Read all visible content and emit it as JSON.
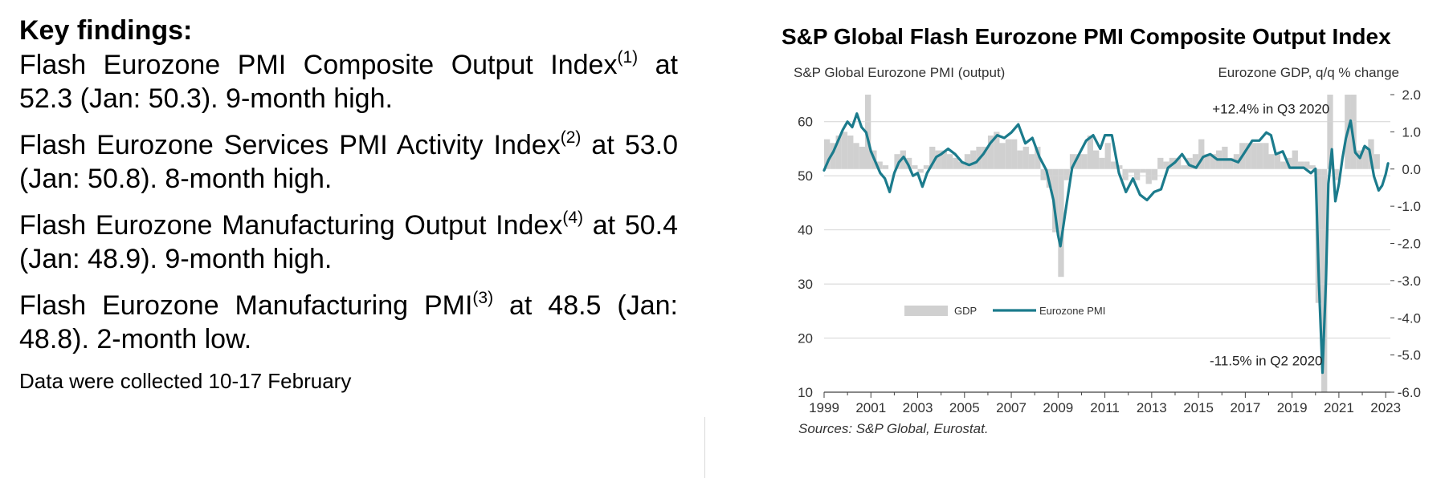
{
  "key_findings": {
    "title": "Key findings:",
    "items": [
      {
        "text": "Flash Eurozone PMI Composite Output Index",
        "sup": "(1)",
        "rest": " at 52.3 (Jan: 50.3). 9-month high."
      },
      {
        "text": "Flash Eurozone Services PMI Activity Index",
        "sup": "(2)",
        "rest": " at 53.0 (Jan: 50.8). 8-month high."
      },
      {
        "text": "Flash Eurozone Manufacturing Output Index",
        "sup": "(4)",
        "rest": " at 50.4 (Jan: 48.9). 9-month high."
      },
      {
        "text": "Flash Eurozone Manufacturing PMI",
        "sup": "(3)",
        "rest": " at 48.5 (Jan: 48.8). 2-month low."
      }
    ],
    "note": "Data were collected 10-17 February"
  },
  "chart_data": {
    "type": "line",
    "title": "S&P Global Flash Eurozone PMI Composite Output Index",
    "ylabel_left": "S&P Global Eurozone PMI (output)",
    "ylabel_right": "Eurozone GDP, q/q % change",
    "source": "Sources: S&P Global, Eurostat.",
    "xlim": [
      1999,
      2023.2
    ],
    "ylim_left": [
      10,
      65
    ],
    "ylim_right": [
      -6.0,
      2.0
    ],
    "x_ticks": [
      "1999",
      "2001",
      "2003",
      "2005",
      "2007",
      "2009",
      "2011",
      "2013",
      "2015",
      "2017",
      "2019",
      "2021",
      "2023"
    ],
    "y_ticks_left": [
      "10",
      "20",
      "30",
      "40",
      "50",
      "60"
    ],
    "y_ticks_right": [
      "2.0",
      "1.0",
      "0.0",
      "-1.0",
      "-2.0",
      "-3.0",
      "-4.0",
      "-5.0",
      "-6.0"
    ],
    "legend": {
      "gdp": "GDP",
      "pmi": "Eurozone PMI"
    },
    "colors": {
      "pmi": "#1b7b8c",
      "gdp": "#d0d0d0",
      "grid": "#d4d4d4",
      "axis": "#404040"
    },
    "annotations": [
      {
        "text": "+12.4% in Q3 2020",
        "x": 2020.6,
        "y": 61.5
      },
      {
        "text": "-11.5% in Q2 2020",
        "x": 2020.3,
        "y": 15.0
      }
    ],
    "gdp_series": {
      "name": "GDP",
      "x": [
        1999.0,
        1999.25,
        1999.5,
        1999.75,
        2000.0,
        2000.25,
        2000.5,
        2000.75,
        2001.0,
        2001.25,
        2001.5,
        2001.75,
        2002.0,
        2002.25,
        2002.5,
        2002.75,
        2003.0,
        2003.25,
        2003.5,
        2003.75,
        2004.0,
        2004.25,
        2004.5,
        2004.75,
        2005.0,
        2005.25,
        2005.5,
        2005.75,
        2006.0,
        2006.25,
        2006.5,
        2006.75,
        2007.0,
        2007.25,
        2007.5,
        2007.75,
        2008.0,
        2008.25,
        2008.5,
        2008.75,
        2009.0,
        2009.25,
        2009.5,
        2009.75,
        2010.0,
        2010.25,
        2010.5,
        2010.75,
        2011.0,
        2011.25,
        2011.5,
        2011.75,
        2012.0,
        2012.25,
        2012.5,
        2012.75,
        2013.0,
        2013.25,
        2013.5,
        2013.75,
        2014.0,
        2014.25,
        2014.5,
        2014.75,
        2015.0,
        2015.25,
        2015.5,
        2015.75,
        2016.0,
        2016.25,
        2016.5,
        2016.75,
        2017.0,
        2017.25,
        2017.5,
        2017.75,
        2018.0,
        2018.25,
        2018.5,
        2018.75,
        2019.0,
        2019.25,
        2019.5,
        2019.75,
        2020.0,
        2020.25,
        2020.5,
        2020.75,
        2021.0,
        2021.25,
        2021.5,
        2021.75,
        2022.0,
        2022.25,
        2022.5,
        2022.75
      ],
      "values": [
        0.8,
        0.7,
        0.9,
        1.0,
        0.9,
        0.7,
        0.6,
        2.0,
        0.5,
        0.2,
        0.1,
        0.0,
        0.4,
        0.5,
        0.3,
        0.1,
        -0.1,
        0.1,
        0.6,
        0.5,
        0.5,
        0.4,
        0.3,
        0.2,
        0.4,
        0.5,
        0.6,
        0.6,
        0.9,
        1.0,
        0.7,
        0.8,
        0.8,
        0.5,
        0.6,
        0.4,
        0.6,
        -0.3,
        -0.5,
        -1.7,
        -2.9,
        -0.3,
        0.4,
        0.4,
        0.4,
        0.9,
        0.5,
        0.3,
        0.7,
        0.2,
        0.1,
        -0.3,
        -0.1,
        -0.3,
        -0.1,
        -0.4,
        -0.3,
        0.3,
        0.2,
        0.3,
        0.3,
        0.1,
        0.3,
        0.4,
        0.8,
        0.4,
        0.4,
        0.5,
        0.6,
        0.3,
        0.4,
        0.7,
        0.7,
        0.7,
        0.7,
        0.7,
        0.4,
        0.4,
        0.2,
        0.3,
        0.5,
        0.2,
        0.2,
        0.1,
        -3.6,
        -11.5,
        12.4,
        -0.3,
        0.0,
        2.2,
        2.1,
        0.5,
        0.6,
        0.8,
        0.4,
        0.0
      ]
    },
    "pmi_series": {
      "name": "Eurozone PMI",
      "x": [
        1999.0,
        1999.2,
        1999.4,
        1999.6,
        1999.8,
        2000.0,
        2000.2,
        2000.4,
        2000.6,
        2000.8,
        2001.0,
        2001.2,
        2001.4,
        2001.6,
        2001.8,
        2002.0,
        2002.2,
        2002.4,
        2002.6,
        2002.8,
        2003.0,
        2003.2,
        2003.4,
        2003.6,
        2003.8,
        2004.0,
        2004.3,
        2004.6,
        2004.9,
        2005.2,
        2005.5,
        2005.8,
        2006.1,
        2006.4,
        2006.7,
        2007.0,
        2007.3,
        2007.6,
        2007.9,
        2008.2,
        2008.5,
        2008.8,
        2009.0,
        2009.1,
        2009.3,
        2009.6,
        2009.9,
        2010.2,
        2010.5,
        2010.8,
        2011.0,
        2011.3,
        2011.6,
        2011.9,
        2012.2,
        2012.5,
        2012.8,
        2013.1,
        2013.4,
        2013.7,
        2014.0,
        2014.3,
        2014.6,
        2014.9,
        2015.2,
        2015.5,
        2015.8,
        2016.1,
        2016.4,
        2016.7,
        2017.0,
        2017.3,
        2017.6,
        2017.9,
        2018.1,
        2018.3,
        2018.6,
        2018.9,
        2019.2,
        2019.5,
        2019.8,
        2020.0,
        2020.15,
        2020.3,
        2020.45,
        2020.55,
        2020.7,
        2020.85,
        2021.0,
        2021.15,
        2021.3,
        2021.5,
        2021.7,
        2021.9,
        2022.1,
        2022.3,
        2022.5,
        2022.7,
        2022.85,
        2023.0,
        2023.1
      ],
      "values": [
        51.0,
        53.0,
        54.5,
        56.5,
        58.5,
        60.0,
        59.0,
        61.5,
        59.0,
        58.0,
        54.5,
        52.5,
        50.5,
        49.5,
        47.0,
        50.5,
        52.5,
        53.5,
        52.0,
        50.0,
        50.5,
        48.0,
        50.5,
        52.0,
        53.5,
        54.0,
        55.0,
        54.0,
        52.5,
        52.0,
        52.5,
        54.0,
        56.0,
        57.5,
        57.0,
        58.0,
        59.5,
        56.0,
        57.0,
        53.5,
        51.0,
        45.5,
        39.0,
        37.0,
        43.0,
        51.5,
        54.0,
        56.5,
        57.5,
        55.0,
        57.5,
        57.5,
        50.5,
        47.0,
        49.5,
        46.5,
        45.5,
        47.0,
        47.5,
        51.5,
        52.5,
        54.0,
        52.0,
        51.5,
        53.5,
        54.0,
        53.0,
        53.0,
        53.0,
        52.5,
        54.5,
        56.5,
        56.5,
        58.0,
        57.5,
        54.0,
        54.5,
        51.5,
        51.5,
        51.5,
        50.5,
        51.3,
        30.0,
        13.6,
        31.0,
        48.5,
        54.9,
        45.3,
        48.5,
        53.2,
        56.9,
        60.2,
        54.3,
        53.3,
        55.5,
        54.8,
        49.9,
        47.3,
        48.2,
        50.3,
        52.3
      ]
    }
  }
}
